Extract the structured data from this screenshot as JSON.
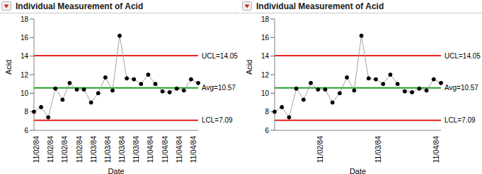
{
  "chart_data": [
    {
      "type": "line",
      "title": "Individual Measurement of Acid",
      "x_label": "Date",
      "y_label": "Acid",
      "categories": [
        "11/02/84",
        null,
        "11/02/84",
        null,
        "11/02/84",
        null,
        "11/02/84",
        null,
        "11/03/84",
        null,
        "11/03/84",
        null,
        "11/03/84",
        null,
        "11/03/84",
        null,
        "11/04/84",
        null,
        "11/04/84",
        null,
        "11/04/84",
        null,
        "11/04/84",
        null
      ],
      "values": [
        8.0,
        8.5,
        7.4,
        10.5,
        9.3,
        11.1,
        10.4,
        10.4,
        9.0,
        10.0,
        11.7,
        10.3,
        16.2,
        11.6,
        11.5,
        11.0,
        12.0,
        11.0,
        10.2,
        10.1,
        10.5,
        10.3,
        11.5,
        11.1
      ],
      "color": "#000000",
      "marker": "circle",
      "ylim": [
        6,
        18
      ],
      "yticks": [
        6,
        8,
        10,
        12,
        14,
        16,
        18
      ],
      "grid": false,
      "annotations": [
        {
          "label": "UCL=14.05",
          "value": 14.05,
          "color": "#e8201e"
        },
        {
          "label": "Avg=10.57",
          "value": 10.57,
          "color": "#20a020"
        },
        {
          "label": "LCL=7.09",
          "value": 7.09,
          "color": "#e8201e"
        }
      ]
    },
    {
      "type": "line",
      "title": "Individual Measurement of Acid",
      "x_label": "Date",
      "y_label": "Acid",
      "categories": [
        null,
        null,
        null,
        null,
        null,
        null,
        "11/02/84",
        null,
        null,
        null,
        null,
        null,
        null,
        null,
        "11/03/84",
        null,
        null,
        null,
        null,
        null,
        null,
        null,
        "11/04/84",
        null
      ],
      "values": [
        8.0,
        8.5,
        7.4,
        10.5,
        9.3,
        11.1,
        10.4,
        10.4,
        9.0,
        10.0,
        11.7,
        10.3,
        16.2,
        11.6,
        11.5,
        11.0,
        12.0,
        11.0,
        10.2,
        10.1,
        10.5,
        10.3,
        11.5,
        11.1
      ],
      "color": "#000000",
      "marker": "circle",
      "ylim": [
        6,
        18
      ],
      "yticks": [
        6,
        8,
        10,
        12,
        14,
        16,
        18
      ],
      "grid": false,
      "annotations": [
        {
          "label": "UCL=14.05",
          "value": 14.05,
          "color": "#e8201e"
        },
        {
          "label": "Avg=10.57",
          "value": 10.57,
          "color": "#20a020"
        },
        {
          "label": "LCL=7.09",
          "value": 7.09,
          "color": "#e8201e"
        }
      ]
    }
  ]
}
